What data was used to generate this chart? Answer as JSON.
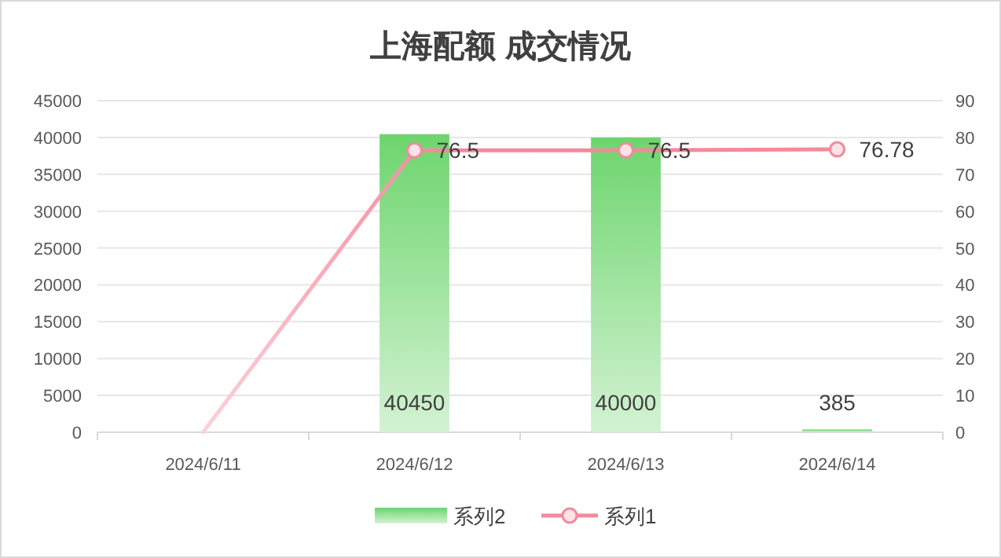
{
  "chart_data": {
    "type": "bar",
    "title": "上海配额 成交情况",
    "categories": [
      "2024/6/11",
      "2024/6/12",
      "2024/6/13",
      "2024/6/14"
    ],
    "series": [
      {
        "name": "系列2",
        "color": "#6dd56d",
        "values": [
          null,
          40450,
          40000,
          385
        ],
        "value_labels": [
          null,
          "40450",
          "40000",
          "385"
        ]
      },
      {
        "name": "系列1",
        "type": "line",
        "axis": "y2",
        "color": "#f4899c",
        "values": [
          0,
          76.5,
          76.5,
          76.78
        ],
        "value_labels": [
          null,
          "76.5",
          "76.5",
          "76.78"
        ],
        "marker": "circle"
      }
    ],
    "ylim": [
      0,
      45000
    ],
    "yticks": [
      0,
      5000,
      10000,
      15000,
      20000,
      25000,
      30000,
      35000,
      40000,
      45000
    ],
    "y2lim": [
      0,
      90
    ],
    "y2ticks": [
      0,
      10,
      20,
      30,
      40,
      50,
      60,
      70,
      80,
      90
    ],
    "grid": "y",
    "legend": "bottom"
  }
}
